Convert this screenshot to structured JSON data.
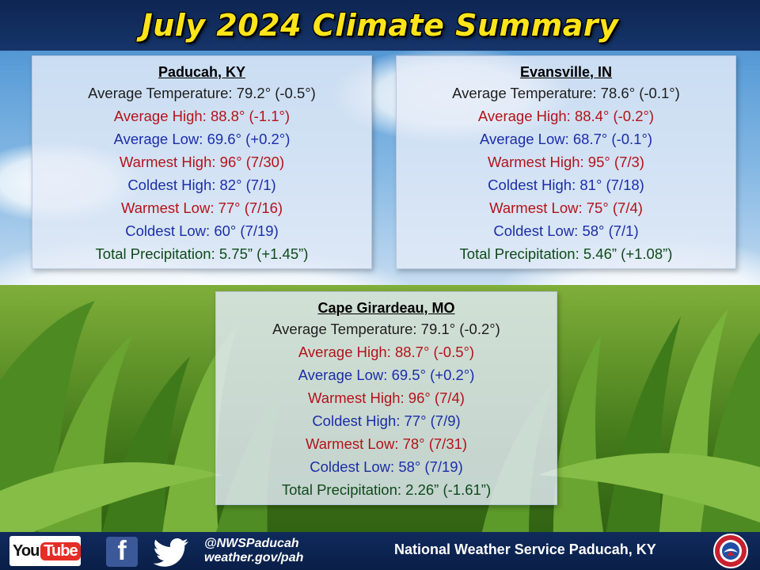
{
  "title": "July 2024 Climate Summary",
  "stations": [
    {
      "city": "Paducah, KY",
      "lines": [
        {
          "text": "Average Temperature: 79.2° (-0.5°)",
          "color": "#1e1e1e"
        },
        {
          "text": "Average High: 88.8° (-1.1°)",
          "color": "#b3131b"
        },
        {
          "text": "Average Low: 69.6° (+0.2°)",
          "color": "#1b2ea8"
        },
        {
          "text": "Warmest High: 96° (7/30)",
          "color": "#b3131b"
        },
        {
          "text": "Coldest High: 82° (7/1)",
          "color": "#1b2ea8"
        },
        {
          "text": "Warmest Low: 77° (7/16)",
          "color": "#b3131b"
        },
        {
          "text": "Coldest Low: 60° (7/19)",
          "color": "#1b2ea8"
        },
        {
          "text": "Total Precipitation: 5.75” (+1.45”)",
          "color": "#0f4a1a"
        }
      ]
    },
    {
      "city": "Evansville, IN",
      "lines": [
        {
          "text": "Average Temperature: 78.6° (-0.1°)",
          "color": "#1e1e1e"
        },
        {
          "text": "Average High: 88.4° (-0.2°)",
          "color": "#b3131b"
        },
        {
          "text": "Average Low: 68.7° (-0.1°)",
          "color": "#1b2ea8"
        },
        {
          "text": "Warmest High: 95° (7/3)",
          "color": "#b3131b"
        },
        {
          "text": "Coldest High: 81° (7/18)",
          "color": "#1b2ea8"
        },
        {
          "text": "Warmest Low: 75° (7/4)",
          "color": "#b3131b"
        },
        {
          "text": "Coldest Low: 58° (7/1)",
          "color": "#1b2ea8"
        },
        {
          "text": "Total Precipitation: 5.46” (+1.08”)",
          "color": "#0f4a1a"
        }
      ]
    },
    {
      "city": "Cape Girardeau, MO",
      "lines": [
        {
          "text": "Average Temperature: 79.1° (-0.2°)",
          "color": "#1e1e1e"
        },
        {
          "text": "Average High: 88.7° (-0.5°)",
          "color": "#b3131b"
        },
        {
          "text": "Average Low: 69.5° (+0.2°)",
          "color": "#1b2ea8"
        },
        {
          "text": "Warmest High: 96° (7/4)",
          "color": "#b3131b"
        },
        {
          "text": "Coldest High: 77° (7/9)",
          "color": "#1b2ea8"
        },
        {
          "text": "Warmest Low: 78° (7/31)",
          "color": "#b3131b"
        },
        {
          "text": "Coldest Low: 58° (7/19)",
          "color": "#1b2ea8"
        },
        {
          "text": "Total Precipitation: 2.26” (-1.61”)",
          "color": "#0f4a1a"
        }
      ]
    }
  ],
  "footer": {
    "youtube_you": "You",
    "youtube_tube": "Tube",
    "facebook_glyph": "f",
    "handle": "@NWSPaducah",
    "website": "weather.gov/pah",
    "office": "National Weather Service Paducah, KY",
    "icons": [
      "youtube-icon",
      "facebook-icon",
      "twitter-icon",
      "nws-seal-icon"
    ]
  }
}
